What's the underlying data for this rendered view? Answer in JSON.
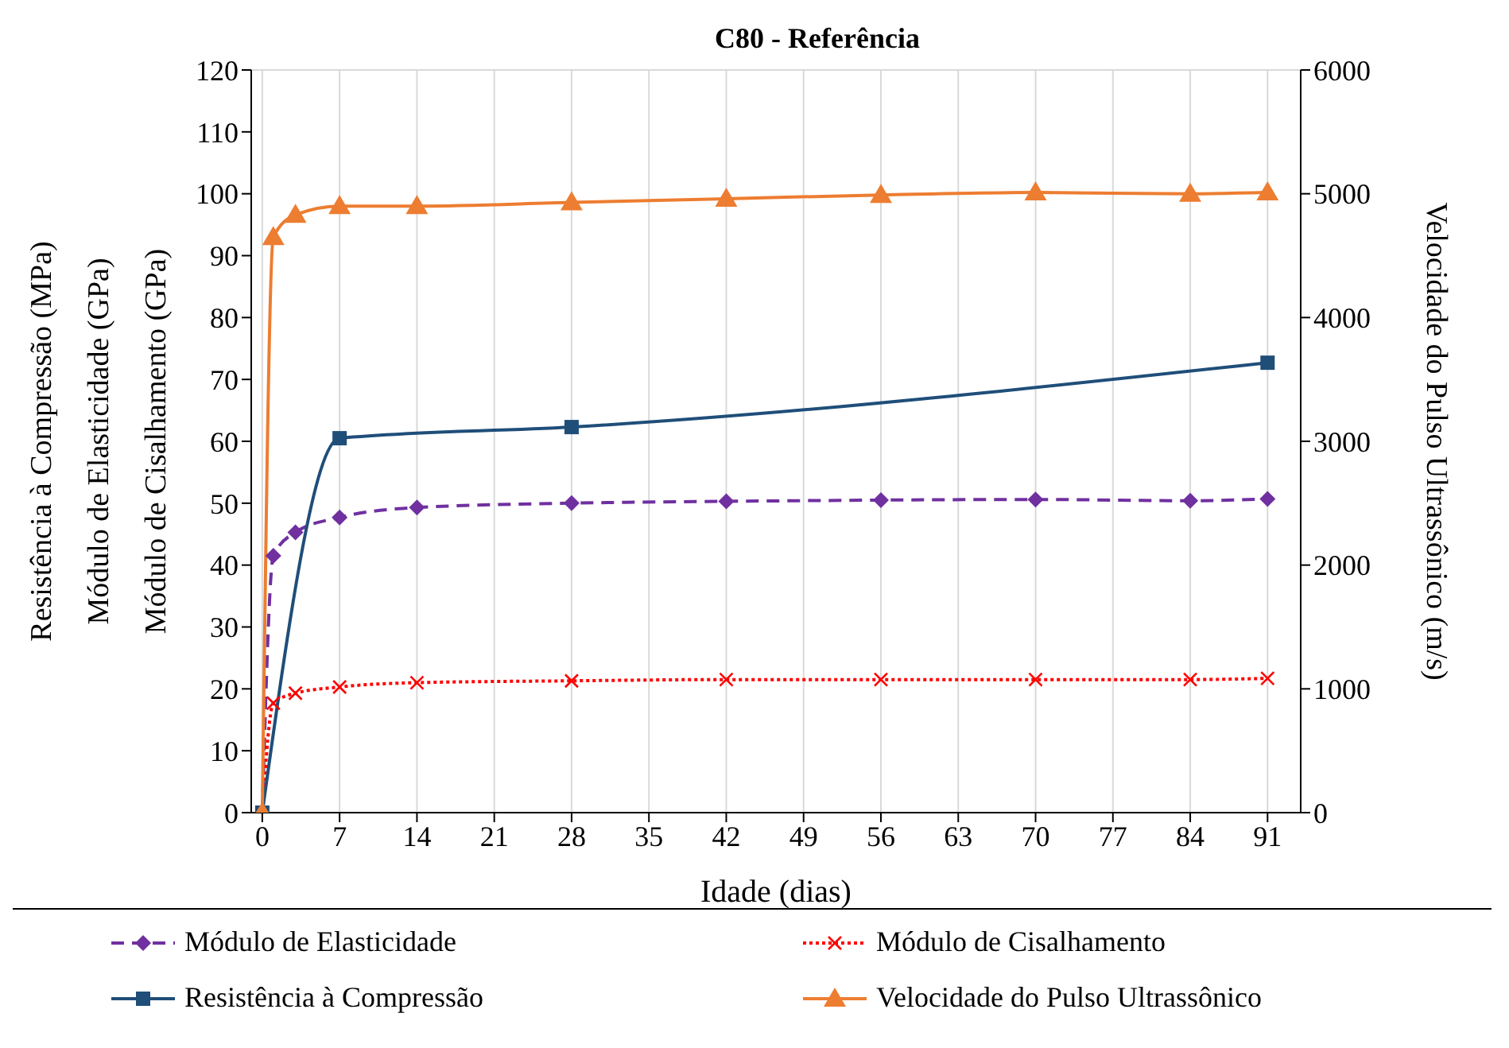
{
  "chart_data": {
    "type": "line",
    "title": "C80 - Referência",
    "xlabel": "Idade (dias)",
    "ylabel": "Resistência à Compressão (MPa)\nMódulo de Elasticidade (GPa)\nMódulo de Cisalhamento (GPa)",
    "y2label": "Velocidade do Pulso Ultrassônico (m/s)",
    "xlim": [
      -1,
      94
    ],
    "xticks": [
      0,
      7,
      14,
      21,
      28,
      35,
      42,
      49,
      56,
      63,
      70,
      77,
      84,
      91
    ],
    "ylim": [
      0,
      120
    ],
    "yticks": [
      0,
      10,
      20,
      30,
      40,
      50,
      60,
      70,
      80,
      90,
      100,
      110,
      120
    ],
    "y2lim": [
      0,
      6000
    ],
    "y2ticks": [
      0,
      1000,
      2000,
      3000,
      4000,
      5000,
      6000
    ],
    "grid": true,
    "legend": "bottom",
    "series": [
      {
        "name": "Módulo de Elasticidade",
        "color": "#7030a0",
        "marker": "diamond",
        "line_style": "dashed",
        "x": [
          0,
          1,
          3,
          7,
          14,
          28,
          42,
          56,
          70,
          84,
          91
        ],
        "values": [
          0,
          41.5,
          45.3,
          47.7,
          49.3,
          50,
          50.3,
          50.5,
          50.6,
          50.4,
          50.7
        ]
      },
      {
        "name": "Módulo de Cisalhamento",
        "color": "#ff0000",
        "marker": "cross",
        "line_style": "dotted",
        "x": [
          0,
          1,
          3,
          7,
          14,
          28,
          42,
          56,
          70,
          84,
          91
        ],
        "values": [
          0,
          17.7,
          19.3,
          20.3,
          21,
          21.3,
          21.5,
          21.5,
          21.5,
          21.5,
          21.7
        ]
      },
      {
        "name": "Resistência à Compressão",
        "color": "#1f4e79",
        "marker": "square",
        "line_style": "solid",
        "x": [
          0,
          7,
          28,
          91
        ],
        "values": [
          0,
          60.5,
          62.3,
          72.7
        ]
      },
      {
        "name": "Velocidade do Pulso Ultrassônico",
        "color": "#ed7d31",
        "marker": "triangle",
        "line_style": "solid",
        "axis": "y2",
        "x": [
          0,
          1,
          3,
          7,
          14,
          28,
          42,
          56,
          70,
          84,
          91
        ],
        "values": [
          0,
          4650,
          4830,
          4900,
          4900,
          4930,
          4960,
          4990,
          5010,
          5000,
          5010
        ]
      }
    ]
  }
}
